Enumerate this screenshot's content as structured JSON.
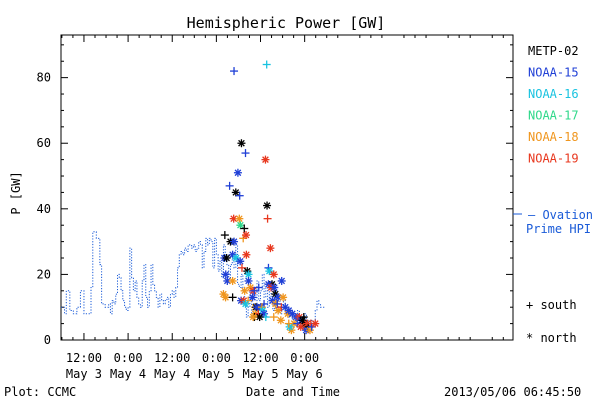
{
  "chart_data": {
    "type": "scatter",
    "title": "Hemispheric Power [GW]",
    "xlabel": "Date and Time",
    "ylabel": "P [GW]",
    "ylim": [
      0,
      93
    ],
    "xlim": [
      -0.63,
      1.93
    ],
    "yticks": [
      0,
      20,
      40,
      60,
      80
    ],
    "xticks": [
      {
        "x": -0.5,
        "time": "12:00",
        "day": "May 3"
      },
      {
        "x": -0.25,
        "time": "0:00",
        "day": "May 4"
      },
      {
        "x": 0.0,
        "time": "12:00",
        "day": "May 4"
      },
      {
        "x": 0.25,
        "time": "0:00",
        "day": "May 5"
      },
      {
        "x": 0.5,
        "time": "12:00",
        "day": "May 5"
      },
      {
        "x": 0.75,
        "time": "0:00",
        "day": "May 6"
      }
    ],
    "x_units": "days since May 4 12:00",
    "legend": {
      "satellites": [
        {
          "name": "METP-02",
          "color": "#000000"
        },
        {
          "name": "NOAA-15",
          "color": "#1f3fd6"
        },
        {
          "name": "NOAA-16",
          "color": "#19c3e0"
        },
        {
          "name": "NOAA-17",
          "color": "#2fd88a"
        },
        {
          "name": "NOAA-18",
          "color": "#f0961e"
        },
        {
          "name": "NOAA-19",
          "color": "#e8371e"
        }
      ],
      "ovation_label_1": "– Ovation",
      "ovation_label_2": "Prime HPI",
      "ovation_color": "#1a5bd8",
      "south_label": "+ south",
      "north_label": "* north"
    },
    "ovation_series": [
      [
        -0.63,
        10
      ],
      [
        -0.61,
        8
      ],
      [
        -0.6,
        15
      ],
      [
        -0.58,
        9
      ],
      [
        -0.56,
        8
      ],
      [
        -0.54,
        10
      ],
      [
        -0.52,
        15
      ],
      [
        -0.5,
        8
      ],
      [
        -0.48,
        8
      ],
      [
        -0.46,
        16
      ],
      [
        -0.45,
        33
      ],
      [
        -0.43,
        31
      ],
      [
        -0.41,
        23
      ],
      [
        -0.4,
        11
      ],
      [
        -0.38,
        10
      ],
      [
        -0.36,
        11
      ],
      [
        -0.35,
        8
      ],
      [
        -0.34,
        12
      ],
      [
        -0.33,
        11
      ],
      [
        -0.32,
        14
      ],
      [
        -0.31,
        20
      ],
      [
        -0.3,
        19
      ],
      [
        -0.29,
        15
      ],
      [
        -0.28,
        12
      ],
      [
        -0.27,
        10
      ],
      [
        -0.26,
        9
      ],
      [
        -0.25,
        10
      ],
      [
        -0.24,
        28
      ],
      [
        -0.23,
        19
      ],
      [
        -0.22,
        15
      ],
      [
        -0.21,
        18
      ],
      [
        -0.2,
        13
      ],
      [
        -0.19,
        11
      ],
      [
        -0.18,
        10
      ],
      [
        -0.17,
        18
      ],
      [
        -0.16,
        23
      ],
      [
        -0.15,
        13
      ],
      [
        -0.14,
        10
      ],
      [
        -0.13,
        15
      ],
      [
        -0.12,
        23
      ],
      [
        -0.11,
        17
      ],
      [
        -0.1,
        15
      ],
      [
        -0.09,
        13
      ],
      [
        -0.08,
        10
      ],
      [
        -0.07,
        14
      ],
      [
        -0.06,
        12
      ],
      [
        -0.05,
        11
      ],
      [
        -0.04,
        12
      ],
      [
        -0.03,
        13
      ],
      [
        -0.02,
        10
      ],
      [
        -0.01,
        14
      ],
      [
        0.0,
        15
      ],
      [
        0.01,
        13
      ],
      [
        0.02,
        16
      ],
      [
        0.03,
        22
      ],
      [
        0.04,
        26
      ],
      [
        0.05,
        27
      ],
      [
        0.06,
        26
      ],
      [
        0.07,
        28
      ],
      [
        0.08,
        27
      ],
      [
        0.09,
        29
      ],
      [
        0.1,
        29
      ],
      [
        0.11,
        28
      ],
      [
        0.12,
        29
      ],
      [
        0.13,
        27
      ],
      [
        0.14,
        28
      ],
      [
        0.15,
        30
      ],
      [
        0.16,
        29
      ],
      [
        0.17,
        22
      ],
      [
        0.18,
        27
      ],
      [
        0.19,
        31
      ],
      [
        0.2,
        29
      ],
      [
        0.21,
        31
      ],
      [
        0.22,
        30
      ],
      [
        0.23,
        22
      ],
      [
        0.24,
        31
      ],
      [
        0.25,
        26
      ],
      [
        0.26,
        21
      ],
      [
        0.27,
        24
      ],
      [
        0.28,
        19
      ],
      [
        0.29,
        29
      ],
      [
        0.3,
        24
      ],
      [
        0.31,
        23
      ],
      [
        0.32,
        19
      ],
      [
        0.33,
        23
      ],
      [
        0.34,
        26
      ],
      [
        0.35,
        22
      ],
      [
        0.36,
        29
      ],
      [
        0.37,
        17
      ],
      [
        0.38,
        16
      ],
      [
        0.39,
        20
      ],
      [
        0.4,
        15
      ],
      [
        0.41,
        11
      ],
      [
        0.42,
        7
      ],
      [
        0.43,
        10
      ],
      [
        0.44,
        15
      ],
      [
        0.45,
        7
      ],
      [
        0.46,
        11
      ],
      [
        0.47,
        9
      ],
      [
        0.48,
        18
      ],
      [
        0.49,
        12
      ],
      [
        0.5,
        15
      ],
      [
        0.51,
        20
      ],
      [
        0.52,
        13
      ],
      [
        0.53,
        16
      ],
      [
        0.54,
        10
      ],
      [
        0.55,
        15
      ],
      [
        0.56,
        13
      ],
      [
        0.57,
        9
      ],
      [
        0.58,
        15
      ],
      [
        0.59,
        9
      ],
      [
        0.6,
        12
      ],
      [
        0.61,
        8
      ],
      [
        0.62,
        10
      ],
      [
        0.63,
        12
      ],
      [
        0.64,
        8
      ],
      [
        0.65,
        10
      ],
      [
        0.66,
        7
      ],
      [
        0.67,
        8
      ],
      [
        0.68,
        5
      ],
      [
        0.69,
        8
      ],
      [
        0.7,
        6
      ],
      [
        0.71,
        9
      ],
      [
        0.72,
        5
      ],
      [
        0.73,
        7
      ],
      [
        0.74,
        4
      ],
      [
        0.75,
        8
      ],
      [
        0.76,
        4
      ],
      [
        0.77,
        6
      ],
      [
        0.78,
        4
      ],
      [
        0.79,
        6
      ],
      [
        0.8,
        5
      ],
      [
        0.81,
        9
      ],
      [
        0.82,
        12
      ],
      [
        0.83,
        11
      ],
      [
        0.84,
        10
      ]
    ],
    "points": [
      {
        "sat": "NOAA-15",
        "hemi": "south",
        "x": 0.35,
        "y": 82
      },
      {
        "sat": "NOAA-16",
        "hemi": "south",
        "x": 0.535,
        "y": 84
      },
      {
        "sat": "METP-02",
        "hemi": "north",
        "x": 0.392,
        "y": 60
      },
      {
        "sat": "NOAA-15",
        "hemi": "south",
        "x": 0.415,
        "y": 57
      },
      {
        "sat": "NOAA-19",
        "hemi": "north",
        "x": 0.528,
        "y": 55
      },
      {
        "sat": "NOAA-15",
        "hemi": "north",
        "x": 0.372,
        "y": 51
      },
      {
        "sat": "NOAA-15",
        "hemi": "south",
        "x": 0.325,
        "y": 47
      },
      {
        "sat": "METP-02",
        "hemi": "north",
        "x": 0.36,
        "y": 45
      },
      {
        "sat": "NOAA-15",
        "hemi": "south",
        "x": 0.382,
        "y": 44
      },
      {
        "sat": "METP-02",
        "hemi": "north",
        "x": 0.537,
        "y": 41
      },
      {
        "sat": "NOAA-19",
        "hemi": "south",
        "x": 0.54,
        "y": 37
      },
      {
        "sat": "NOAA-19",
        "hemi": "north",
        "x": 0.348,
        "y": 37
      },
      {
        "sat": "NOAA-18",
        "hemi": "north",
        "x": 0.38,
        "y": 37
      },
      {
        "sat": "NOAA-17",
        "hemi": "north",
        "x": 0.386,
        "y": 35
      },
      {
        "sat": "METP-02",
        "hemi": "south",
        "x": 0.408,
        "y": 34
      },
      {
        "sat": "NOAA-18",
        "hemi": "south",
        "x": 0.402,
        "y": 31
      },
      {
        "sat": "NOAA-19",
        "hemi": "north",
        "x": 0.418,
        "y": 32
      },
      {
        "sat": "METP-02",
        "hemi": "south",
        "x": 0.298,
        "y": 32
      },
      {
        "sat": "METP-02",
        "hemi": "north",
        "x": 0.33,
        "y": 30
      },
      {
        "sat": "NOAA-15",
        "hemi": "north",
        "x": 0.35,
        "y": 30
      },
      {
        "sat": "NOAA-19",
        "hemi": "north",
        "x": 0.556,
        "y": 28
      },
      {
        "sat": "NOAA-15",
        "hemi": "north",
        "x": 0.342,
        "y": 26
      },
      {
        "sat": "NOAA-19",
        "hemi": "north",
        "x": 0.42,
        "y": 26
      },
      {
        "sat": "NOAA-15",
        "hemi": "north",
        "x": 0.295,
        "y": 25
      },
      {
        "sat": "METP-02",
        "hemi": "north",
        "x": 0.308,
        "y": 25
      },
      {
        "sat": "NOAA-16",
        "hemi": "north",
        "x": 0.362,
        "y": 25
      },
      {
        "sat": "NOAA-15",
        "hemi": "north",
        "x": 0.385,
        "y": 24
      },
      {
        "sat": "NOAA-19",
        "hemi": "south",
        "x": 0.395,
        "y": 22
      },
      {
        "sat": "NOAA-15",
        "hemi": "south",
        "x": 0.545,
        "y": 22
      },
      {
        "sat": "NOAA-16",
        "hemi": "north",
        "x": 0.55,
        "y": 21
      },
      {
        "sat": "METP-02",
        "hemi": "north",
        "x": 0.425,
        "y": 21
      },
      {
        "sat": "NOAA-15",
        "hemi": "north",
        "x": 0.303,
        "y": 20
      },
      {
        "sat": "NOAA-16",
        "hemi": "north",
        "x": 0.432,
        "y": 20
      },
      {
        "sat": "NOAA-19",
        "hemi": "north",
        "x": 0.575,
        "y": 20
      },
      {
        "sat": "NOAA-15",
        "hemi": "north",
        "x": 0.432,
        "y": 18
      },
      {
        "sat": "NOAA-15",
        "hemi": "north",
        "x": 0.312,
        "y": 18
      },
      {
        "sat": "NOAA-18",
        "hemi": "north",
        "x": 0.342,
        "y": 18
      },
      {
        "sat": "NOAA-15",
        "hemi": "north",
        "x": 0.62,
        "y": 18
      },
      {
        "sat": "METP-02",
        "hemi": "north",
        "x": 0.565,
        "y": 17
      },
      {
        "sat": "NOAA-15",
        "hemi": "north",
        "x": 0.545,
        "y": 17
      },
      {
        "sat": "NOAA-19",
        "hemi": "north",
        "x": 0.56,
        "y": 16
      },
      {
        "sat": "NOAA-15",
        "hemi": "north",
        "x": 0.578,
        "y": 16
      },
      {
        "sat": "NOAA-15",
        "hemi": "south",
        "x": 0.49,
        "y": 16
      },
      {
        "sat": "NOAA-18",
        "hemi": "north",
        "x": 0.443,
        "y": 16
      },
      {
        "sat": "NOAA-19",
        "hemi": "north",
        "x": 0.458,
        "y": 15
      },
      {
        "sat": "NOAA-15",
        "hemi": "south",
        "x": 0.465,
        "y": 15
      },
      {
        "sat": "NOAA-18",
        "hemi": "north",
        "x": 0.41,
        "y": 15
      },
      {
        "sat": "METP-02",
        "hemi": "north",
        "x": 0.584,
        "y": 14
      },
      {
        "sat": "NOAA-18",
        "hemi": "north",
        "x": 0.29,
        "y": 14
      },
      {
        "sat": "NOAA-18",
        "hemi": "north",
        "x": 0.302,
        "y": 13
      },
      {
        "sat": "METP-02",
        "hemi": "south",
        "x": 0.342,
        "y": 13
      },
      {
        "sat": "NOAA-15",
        "hemi": "north",
        "x": 0.455,
        "y": 13
      },
      {
        "sat": "NOAA-15",
        "hemi": "north",
        "x": 0.6,
        "y": 13
      },
      {
        "sat": "NOAA-18",
        "hemi": "north",
        "x": 0.628,
        "y": 13
      },
      {
        "sat": "NOAA-15",
        "hemi": "north",
        "x": 0.39,
        "y": 12
      },
      {
        "sat": "NOAA-19",
        "hemi": "north",
        "x": 0.405,
        "y": 12
      },
      {
        "sat": "NOAA-18",
        "hemi": "south",
        "x": 0.43,
        "y": 12
      },
      {
        "sat": "NOAA-15",
        "hemi": "north",
        "x": 0.568,
        "y": 12
      },
      {
        "sat": "NOAA-18",
        "hemi": "north",
        "x": 0.585,
        "y": 11
      },
      {
        "sat": "NOAA-15",
        "hemi": "south",
        "x": 0.595,
        "y": 11
      },
      {
        "sat": "NOAA-16",
        "hemi": "north",
        "x": 0.415,
        "y": 11
      },
      {
        "sat": "NOAA-15",
        "hemi": "south",
        "x": 0.52,
        "y": 11
      },
      {
        "sat": "NOAA-18",
        "hemi": "north",
        "x": 0.47,
        "y": 10
      },
      {
        "sat": "METP-02",
        "hemi": "north",
        "x": 0.475,
        "y": 10
      },
      {
        "sat": "NOAA-15",
        "hemi": "north",
        "x": 0.48,
        "y": 10
      },
      {
        "sat": "NOAA-15",
        "hemi": "north",
        "x": 0.502,
        "y": 10
      },
      {
        "sat": "NOAA-18",
        "hemi": "south",
        "x": 0.508,
        "y": 10
      },
      {
        "sat": "NOAA-16",
        "hemi": "north",
        "x": 0.512,
        "y": 9
      },
      {
        "sat": "NOAA-18",
        "hemi": "north",
        "x": 0.6,
        "y": 9
      },
      {
        "sat": "NOAA-19",
        "hemi": "south",
        "x": 0.618,
        "y": 10
      },
      {
        "sat": "NOAA-15",
        "hemi": "north",
        "x": 0.64,
        "y": 10
      },
      {
        "sat": "NOAA-18",
        "hemi": "north",
        "x": 0.655,
        "y": 8
      },
      {
        "sat": "NOAA-15",
        "hemi": "north",
        "x": 0.66,
        "y": 9
      },
      {
        "sat": "NOAA-18",
        "hemi": "north",
        "x": 0.47,
        "y": 8
      },
      {
        "sat": "NOAA-19",
        "hemi": "south",
        "x": 0.488,
        "y": 8
      },
      {
        "sat": "METP-02",
        "hemi": "south",
        "x": 0.465,
        "y": 7
      },
      {
        "sat": "NOAA-15",
        "hemi": "north",
        "x": 0.52,
        "y": 8
      },
      {
        "sat": "NOAA-16",
        "hemi": "south",
        "x": 0.53,
        "y": 7
      },
      {
        "sat": "METP-02",
        "hemi": "north",
        "x": 0.495,
        "y": 7
      },
      {
        "sat": "NOAA-18",
        "hemi": "north",
        "x": 0.458,
        "y": 7
      },
      {
        "sat": "NOAA-18",
        "hemi": "south",
        "x": 0.575,
        "y": 7
      },
      {
        "sat": "NOAA-18",
        "hemi": "north",
        "x": 0.615,
        "y": 6
      },
      {
        "sat": "NOAA-15",
        "hemi": "north",
        "x": 0.68,
        "y": 8
      },
      {
        "sat": "NOAA-15",
        "hemi": "north",
        "x": 0.7,
        "y": 7
      },
      {
        "sat": "NOAA-19",
        "hemi": "north",
        "x": 0.72,
        "y": 7
      },
      {
        "sat": "NOAA-15",
        "hemi": "north",
        "x": 0.73,
        "y": 6
      },
      {
        "sat": "NOAA-18",
        "hemi": "north",
        "x": 0.69,
        "y": 5
      },
      {
        "sat": "NOAA-15",
        "hemi": "south",
        "x": 0.708,
        "y": 5
      },
      {
        "sat": "METP-02",
        "hemi": "north",
        "x": 0.738,
        "y": 6
      },
      {
        "sat": "NOAA-18",
        "hemi": "south",
        "x": 0.748,
        "y": 4
      },
      {
        "sat": "METP-02",
        "hemi": "north",
        "x": 0.752,
        "y": 5
      },
      {
        "sat": "NOAA-15",
        "hemi": "north",
        "x": 0.758,
        "y": 3
      },
      {
        "sat": "NOAA-19",
        "hemi": "north",
        "x": 0.765,
        "y": 5
      },
      {
        "sat": "METP-02",
        "hemi": "south",
        "x": 0.77,
        "y": 4
      },
      {
        "sat": "NOAA-18",
        "hemi": "north",
        "x": 0.78,
        "y": 3
      },
      {
        "sat": "NOAA-19",
        "hemi": "south",
        "x": 0.785,
        "y": 5
      },
      {
        "sat": "NOAA-15",
        "hemi": "south",
        "x": 0.79,
        "y": 4
      },
      {
        "sat": "NOAA-18",
        "hemi": "north",
        "x": 0.675,
        "y": 3
      },
      {
        "sat": "NOAA-16",
        "hemi": "north",
        "x": 0.665,
        "y": 4
      },
      {
        "sat": "NOAA-18",
        "hemi": "south",
        "x": 0.66,
        "y": 5
      },
      {
        "sat": "NOAA-19",
        "hemi": "north",
        "x": 0.728,
        "y": 4
      },
      {
        "sat": "METP-02",
        "hemi": "south",
        "x": 0.745,
        "y": 7
      },
      {
        "sat": "NOAA-19",
        "hemi": "north",
        "x": 0.81,
        "y": 5
      }
    ]
  },
  "footer": {
    "plot_label": "Plot: CCMC",
    "timestamp": "2013/05/06 06:45:50"
  }
}
